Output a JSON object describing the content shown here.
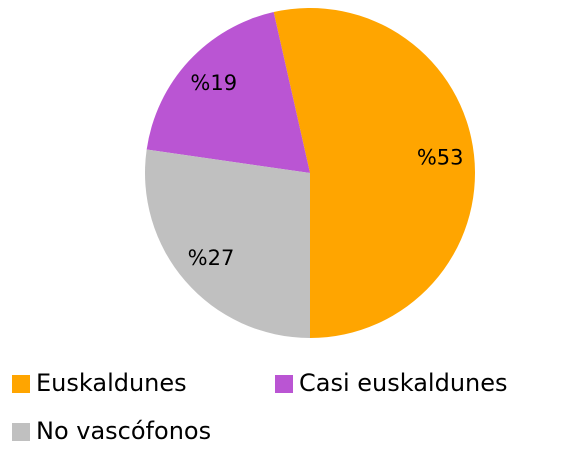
{
  "chart_data": {
    "type": "pie",
    "categories": [
      "Euskaldunes",
      "Casi euskaldunes",
      "No vascófonos"
    ],
    "values": [
      53,
      19,
      27
    ],
    "value_labels": [
      "%53",
      "%19",
      "%27"
    ],
    "colors": [
      "#ffa500",
      "#ba55d3",
      "#c0c0c0"
    ]
  }
}
